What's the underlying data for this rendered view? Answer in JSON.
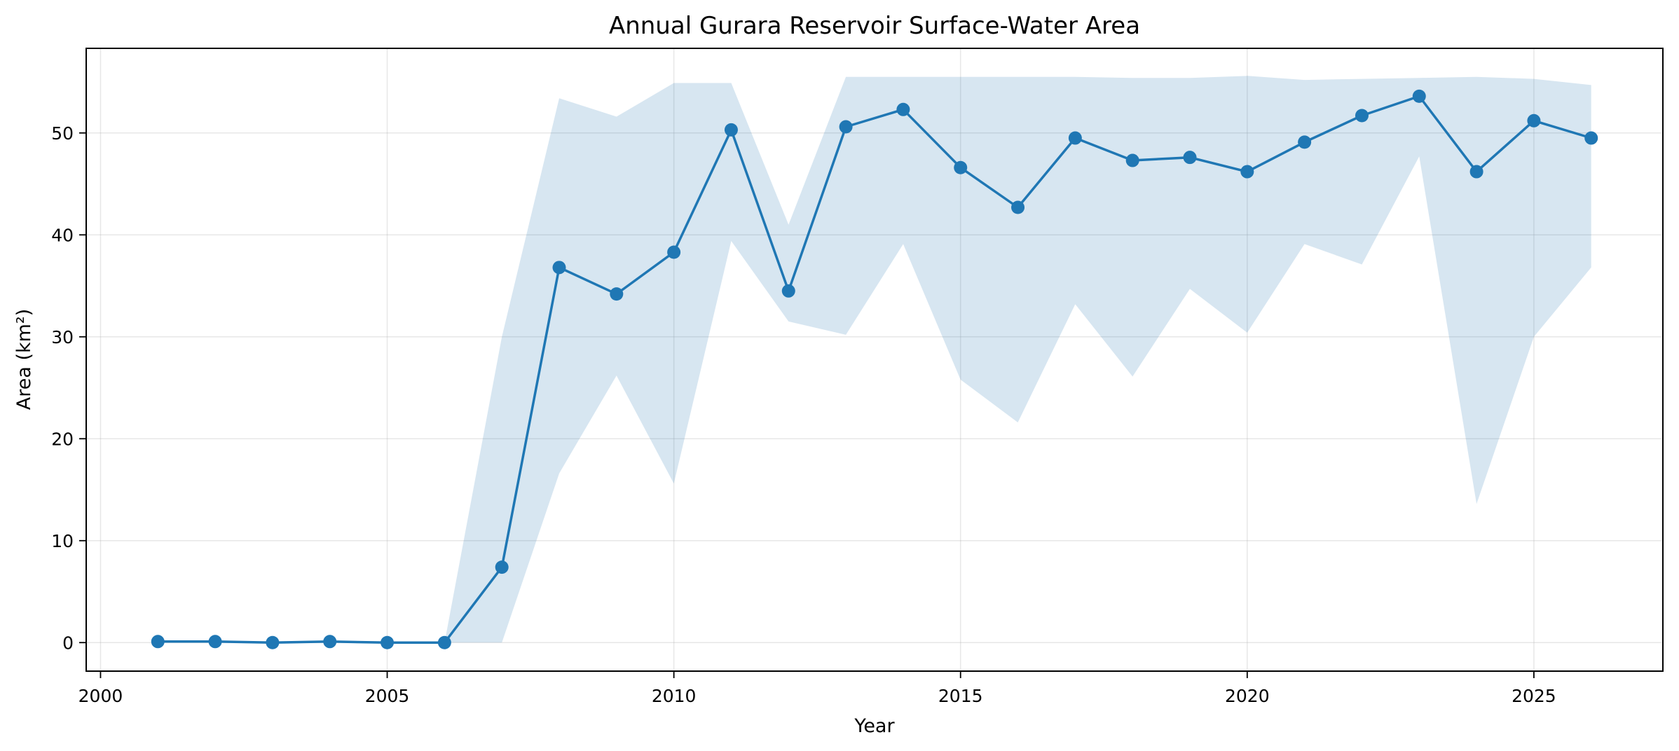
{
  "chart_data": {
    "type": "line",
    "title": "Annual Gurara Reservoir Surface-Water Area",
    "xlabel": "Year",
    "ylabel": "Area (km²)",
    "xlim": [
      1999.75,
      2027.25
    ],
    "ylim": [
      -2.8,
      58.3
    ],
    "xticks": [
      2000,
      2005,
      2010,
      2015,
      2020,
      2025
    ],
    "yticks": [
      0,
      10,
      20,
      30,
      40,
      50
    ],
    "grid": true,
    "legend": "none",
    "colors": {
      "line": "#1f77b4",
      "band": "#1f77b4",
      "grid": "#b0b0b0",
      "axes": "#000000"
    },
    "x": [
      2001,
      2002,
      2003,
      2004,
      2005,
      2006,
      2007,
      2008,
      2009,
      2010,
      2011,
      2012,
      2013,
      2014,
      2015,
      2016,
      2017,
      2018,
      2019,
      2020,
      2021,
      2022,
      2023,
      2024,
      2025,
      2026
    ],
    "series": [
      {
        "values": [
          0.1,
          0.1,
          0.0,
          0.1,
          0.0,
          0.0,
          7.4,
          36.8,
          34.2,
          38.3,
          50.3,
          34.5,
          50.6,
          52.3,
          46.6,
          42.7,
          49.5,
          47.3,
          47.6,
          46.2,
          49.1,
          51.7,
          53.6,
          46.2,
          51.2,
          49.5
        ]
      }
    ],
    "band": {
      "lower": [
        0,
        0,
        0,
        0,
        0,
        0,
        0,
        16.6,
        26.2,
        15.6,
        39.4,
        31.5,
        30.2,
        39.1,
        25.8,
        21.6,
        33.2,
        26.1,
        34.7,
        30.4,
        39.1,
        37.1,
        47.7,
        13.6,
        30.0,
        36.8
      ],
      "upper": [
        0,
        0,
        0,
        0,
        0,
        0,
        30.0,
        53.4,
        51.6,
        54.9,
        54.9,
        41.0,
        55.5,
        55.5,
        55.5,
        55.5,
        55.5,
        55.4,
        55.4,
        55.6,
        55.2,
        55.3,
        55.4,
        55.5,
        55.3,
        54.7
      ]
    }
  }
}
